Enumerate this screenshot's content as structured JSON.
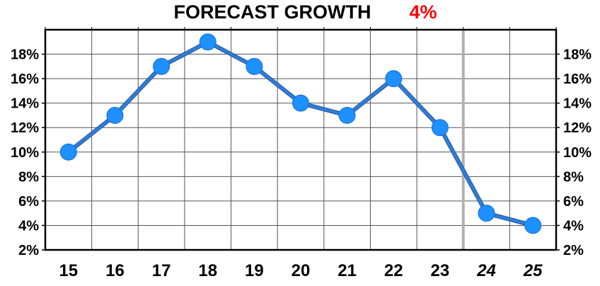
{
  "chart_data": {
    "type": "line",
    "title": "FORECAST GROWTH",
    "title_value": "4%",
    "title_value_color": "#ff0000",
    "xlabel": "",
    "ylabel": "",
    "categories": [
      "15",
      "16",
      "17",
      "18",
      "19",
      "20",
      "21",
      "22",
      "23",
      "24",
      "25"
    ],
    "forecast_categories": [
      "24",
      "25"
    ],
    "series": [
      {
        "values": [
          10,
          13,
          17,
          19,
          17,
          14,
          13,
          16,
          12,
          5,
          4
        ]
      }
    ],
    "ylim": [
      2,
      20
    ],
    "yticks": [
      2,
      4,
      6,
      8,
      10,
      12,
      14,
      16,
      18
    ],
    "ytick_labels": [
      "2%",
      "4%",
      "6%",
      "8%",
      "10%",
      "12%",
      "14%",
      "16%",
      "18%"
    ],
    "y_axis_sides": "left and right",
    "grid": true,
    "line_color": "#2f7fd9",
    "marker_color": "#1e90ff",
    "forecast_divider_color": "#b0b0b0"
  }
}
